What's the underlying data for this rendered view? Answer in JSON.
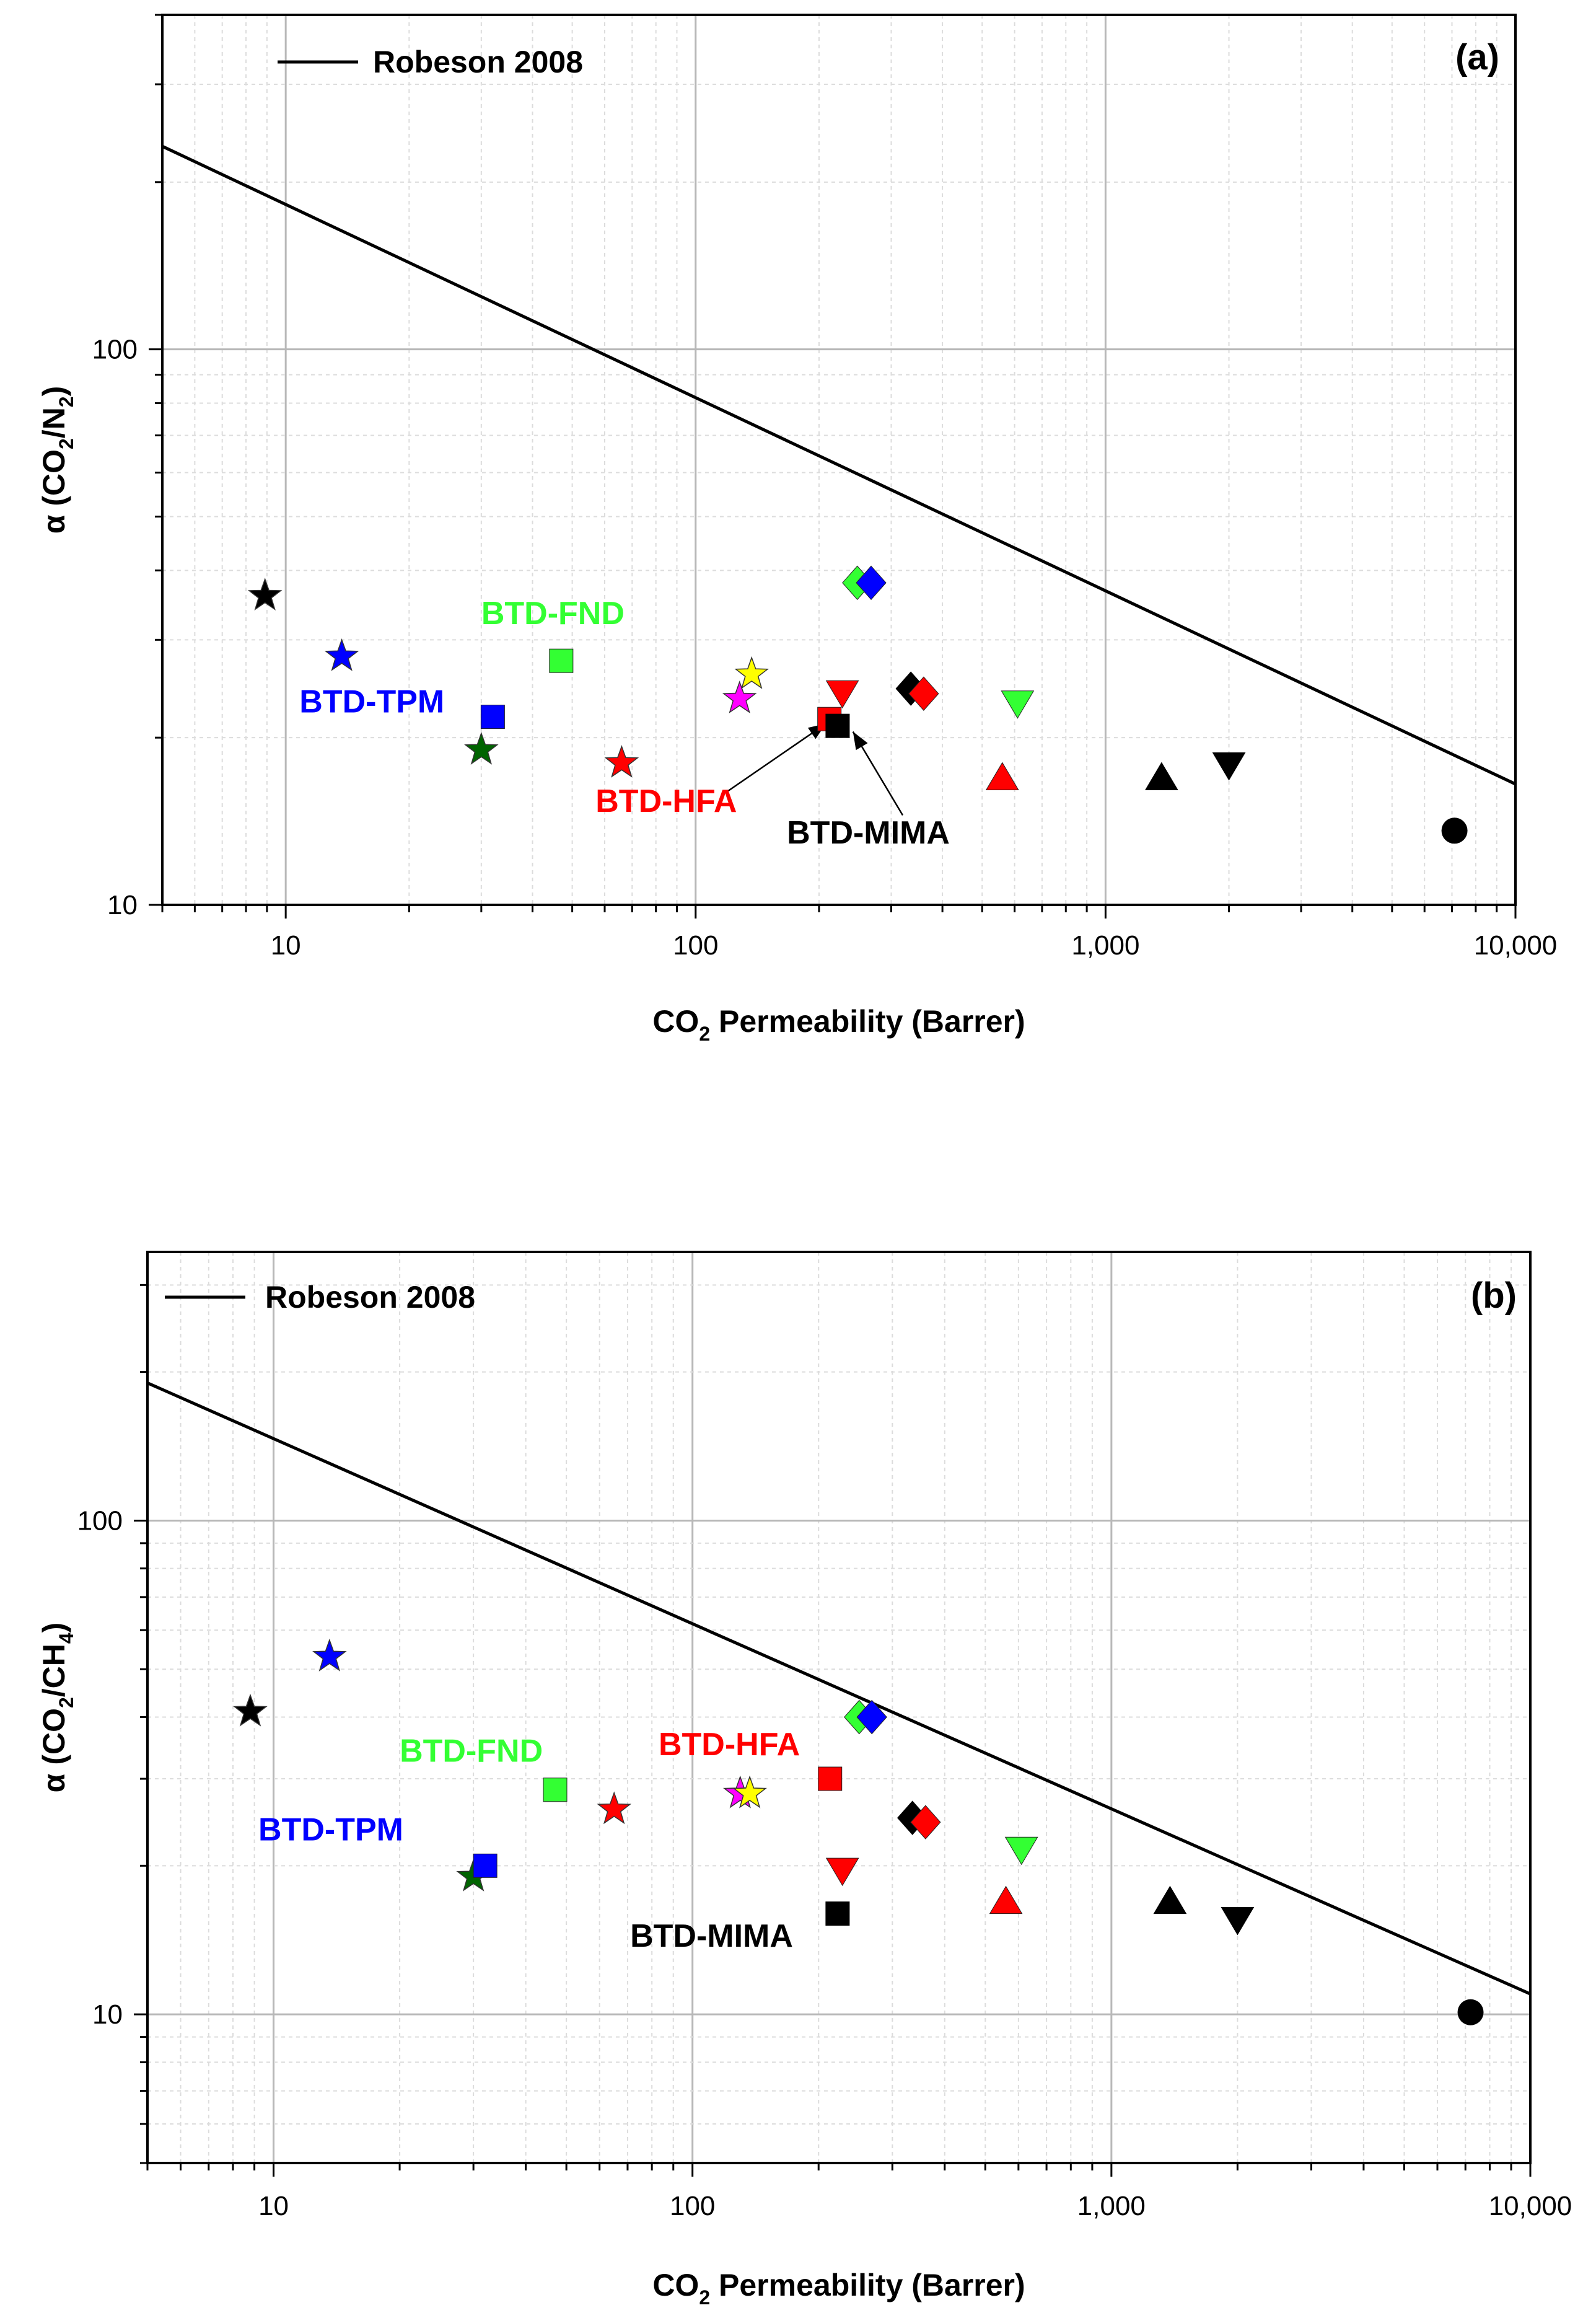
{
  "chart_data": [
    {
      "type": "scatter",
      "panel_label": "(a)",
      "xlabel": {
        "prefix": "CO",
        "sub": "2",
        "suffix": " Permeability (Barrer)"
      },
      "ylabel": {
        "pre": "α (CO",
        "sub1": "2",
        "mid": "/N",
        "sub2": "2",
        "post": ")"
      },
      "xscale": "log",
      "yscale": "log",
      "xlim": [
        5,
        10000
      ],
      "ylim": [
        10,
        400
      ],
      "xticks": [
        {
          "v": 10,
          "label": "10"
        },
        {
          "v": 100,
          "label": "100"
        },
        {
          "v": 1000,
          "label": "1,000"
        },
        {
          "v": 10000,
          "label": "10,000"
        }
      ],
      "yticks": [
        {
          "v": 10,
          "label": "10"
        },
        {
          "v": 100,
          "label": "100"
        }
      ],
      "grid": true,
      "legend": {
        "position": "top-left",
        "entries": [
          "Robeson 2008"
        ]
      },
      "upper_bound": {
        "name": "Robeson 2008",
        "x": [
          5,
          10000
        ],
        "y": [
          232,
          16.5
        ]
      },
      "points": [
        {
          "marker": "star",
          "color": "#000000",
          "x": 8.9,
          "y": 36
        },
        {
          "marker": "star",
          "color": "#0000ff",
          "x": 13.7,
          "y": 28
        },
        {
          "marker": "star",
          "color": "#006400",
          "x": 30,
          "y": 19
        },
        {
          "marker": "star",
          "color": "#ff0000",
          "x": 66,
          "y": 18
        },
        {
          "marker": "star",
          "color": "#ff00ff",
          "x": 128,
          "y": 23.5
        },
        {
          "marker": "star",
          "color": "#ffff00",
          "x": 137,
          "y": 26
        },
        {
          "marker": "square",
          "color": "#0000ff",
          "x": 32,
          "y": 21.8
        },
        {
          "marker": "square",
          "color": "#33ff33",
          "x": 47,
          "y": 27.5
        },
        {
          "marker": "square",
          "color": "#ff0000",
          "x": 212,
          "y": 21.6
        },
        {
          "marker": "square",
          "color": "#000000",
          "x": 222,
          "y": 21
        },
        {
          "marker": "diamond",
          "color": "#33ff33",
          "x": 248,
          "y": 38
        },
        {
          "marker": "diamond",
          "color": "#0000ff",
          "x": 268,
          "y": 38
        },
        {
          "marker": "diamond",
          "color": "#000000",
          "x": 335,
          "y": 24.5
        },
        {
          "marker": "diamond",
          "color": "#ff0000",
          "x": 360,
          "y": 24
        },
        {
          "marker": "triangle-down",
          "color": "#ff0000",
          "x": 228,
          "y": 24
        },
        {
          "marker": "triangle-down",
          "color": "#33ff33",
          "x": 610,
          "y": 23
        },
        {
          "marker": "triangle-down",
          "color": "#000000",
          "x": 2000,
          "y": 17.8
        },
        {
          "marker": "triangle-up",
          "color": "#ff0000",
          "x": 560,
          "y": 17
        },
        {
          "marker": "triangle-up",
          "color": "#000000",
          "x": 1370,
          "y": 17
        },
        {
          "marker": "circle",
          "color": "#000000",
          "x": 7100,
          "y": 13.6
        }
      ],
      "annotations": [
        {
          "text": "BTD-FND",
          "color": "#33ff33",
          "x": 30,
          "y": 32
        },
        {
          "text": "BTD-TPM",
          "color": "#0000ff",
          "x": 10.8,
          "y": 22.2
        },
        {
          "text": "BTD-HFA",
          "color": "#ff0000",
          "x": 57,
          "y": 14.7
        },
        {
          "text": "BTD-MIMA",
          "color": "#000000",
          "x": 167,
          "y": 12.9
        }
      ],
      "arrows": [
        {
          "from": [
            118,
            15.9
          ],
          "to": [
            208,
            21.2
          ]
        },
        {
          "from": [
            320,
            14.5
          ],
          "to": [
            242,
            20.5
          ]
        }
      ]
    },
    {
      "type": "scatter",
      "panel_label": "(b)",
      "xlabel": {
        "prefix": "CO",
        "sub": "2",
        "suffix": " Permeability (Barrer)"
      },
      "ylabel": {
        "pre": "α (CO",
        "sub1": "2",
        "mid": "/CH",
        "sub2": "4",
        "post": ")"
      },
      "xscale": "log",
      "yscale": "log",
      "xlim": [
        5,
        10000
      ],
      "ylim": [
        5,
        350
      ],
      "xticks": [
        {
          "v": 10,
          "label": "10"
        },
        {
          "v": 100,
          "label": "100"
        },
        {
          "v": 1000,
          "label": "1,000"
        },
        {
          "v": 10000,
          "label": "10,000"
        }
      ],
      "yticks": [
        {
          "v": 10,
          "label": "10"
        },
        {
          "v": 100,
          "label": "100"
        }
      ],
      "grid": true,
      "legend": {
        "position": "top-left",
        "entries": [
          "Robeson 2008"
        ]
      },
      "upper_bound": {
        "name": "Robeson 2008",
        "x": [
          5,
          10000
        ],
        "y": [
          190,
          11
        ]
      },
      "points": [
        {
          "marker": "star",
          "color": "#000000",
          "x": 8.8,
          "y": 41
        },
        {
          "marker": "star",
          "color": "#0000ff",
          "x": 13.6,
          "y": 53
        },
        {
          "marker": "star",
          "color": "#006400",
          "x": 30,
          "y": 19
        },
        {
          "marker": "star",
          "color": "#ff0000",
          "x": 65,
          "y": 26
        },
        {
          "marker": "star",
          "color": "#ff00ff",
          "x": 130,
          "y": 28
        },
        {
          "marker": "star",
          "color": "#ffff00",
          "x": 137,
          "y": 28
        },
        {
          "marker": "square",
          "color": "#0000ff",
          "x": 32,
          "y": 20
        },
        {
          "marker": "square",
          "color": "#33ff33",
          "x": 47,
          "y": 28.5
        },
        {
          "marker": "square",
          "color": "#ff0000",
          "x": 213,
          "y": 30
        },
        {
          "marker": "square",
          "color": "#000000",
          "x": 222,
          "y": 16
        },
        {
          "marker": "diamond",
          "color": "#33ff33",
          "x": 250,
          "y": 40
        },
        {
          "marker": "diamond",
          "color": "#0000ff",
          "x": 268,
          "y": 40
        },
        {
          "marker": "diamond",
          "color": "#000000",
          "x": 335,
          "y": 25
        },
        {
          "marker": "diamond",
          "color": "#ff0000",
          "x": 360,
          "y": 24.5
        },
        {
          "marker": "triangle-down",
          "color": "#ff0000",
          "x": 228,
          "y": 19.5
        },
        {
          "marker": "triangle-down",
          "color": "#33ff33",
          "x": 610,
          "y": 21.5
        },
        {
          "marker": "triangle-down",
          "color": "#000000",
          "x": 2000,
          "y": 15.5
        },
        {
          "marker": "triangle-up",
          "color": "#ff0000",
          "x": 560,
          "y": 17
        },
        {
          "marker": "triangle-up",
          "color": "#000000",
          "x": 1380,
          "y": 17
        },
        {
          "marker": "circle",
          "color": "#000000",
          "x": 7200,
          "y": 10.1
        }
      ],
      "annotations": [
        {
          "text": "BTD-FND",
          "color": "#33ff33",
          "x": 20,
          "y": 32.5
        },
        {
          "text": "BTD-TPM",
          "color": "#0000ff",
          "x": 9.2,
          "y": 22.5
        },
        {
          "text": "BTD-HFA",
          "color": "#ff0000",
          "x": 83,
          "y": 33.5
        },
        {
          "text": "BTD-MIMA",
          "color": "#000000",
          "x": 71,
          "y": 13.7
        }
      ],
      "arrows": []
    }
  ]
}
